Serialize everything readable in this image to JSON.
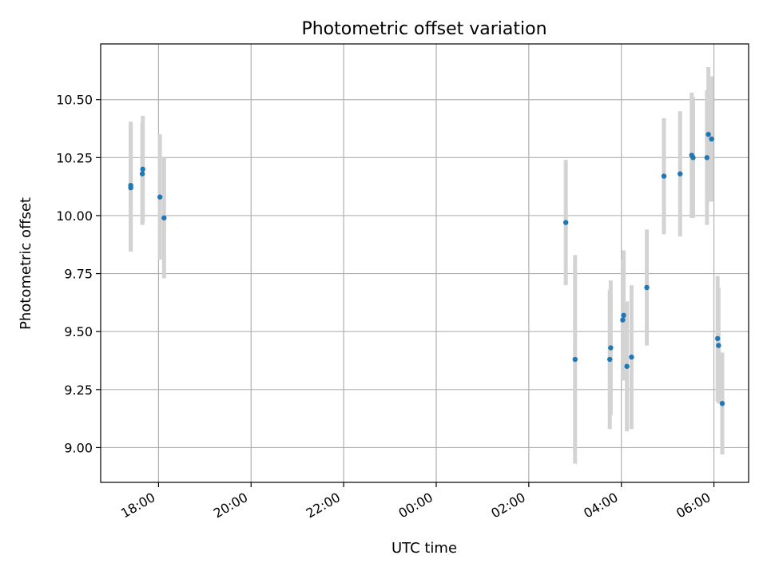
{
  "chart_data": {
    "type": "scatter",
    "title": "Photometric offset variation",
    "xlabel": "UTC time",
    "ylabel": "Photometric offset",
    "x_ticks": [
      "18:00",
      "20:00",
      "22:00",
      "00:00",
      "02:00",
      "04:00",
      "06:00"
    ],
    "y_ticks": [
      "9.00",
      "9.25",
      "9.50",
      "9.75",
      "10.00",
      "10.25",
      "10.50"
    ],
    "x_unit": "hours since 18:00 UTC",
    "xlim": [
      -1.25,
      12.75
    ],
    "ylim": [
      8.85,
      10.74
    ],
    "grid": true,
    "marker_color": "#1f77b4",
    "errorbar_color": "#d3d3d3",
    "points": [
      {
        "x": -0.6,
        "y": 10.12,
        "err": 0.275
      },
      {
        "x": -0.6,
        "y": 10.13,
        "err": 0.275
      },
      {
        "x": -0.35,
        "y": 10.18,
        "err": 0.22
      },
      {
        "x": -0.34,
        "y": 10.2,
        "err": 0.23
      },
      {
        "x": 0.03,
        "y": 10.08,
        "err": 0.27
      },
      {
        "x": 0.12,
        "y": 9.99,
        "err": 0.26
      },
      {
        "x": 8.8,
        "y": 9.97,
        "err": 0.27
      },
      {
        "x": 9.0,
        "y": 9.38,
        "err": 0.45
      },
      {
        "x": 9.75,
        "y": 9.38,
        "err": 0.3
      },
      {
        "x": 9.77,
        "y": 9.43,
        "err": 0.29
      },
      {
        "x": 10.03,
        "y": 9.55,
        "err": 0.26
      },
      {
        "x": 10.05,
        "y": 9.57,
        "err": 0.28
      },
      {
        "x": 10.12,
        "y": 9.35,
        "err": 0.28
      },
      {
        "x": 10.22,
        "y": 9.39,
        "err": 0.31
      },
      {
        "x": 10.55,
        "y": 9.69,
        "err": 0.25
      },
      {
        "x": 10.92,
        "y": 10.17,
        "err": 0.25
      },
      {
        "x": 11.27,
        "y": 10.18,
        "err": 0.27
      },
      {
        "x": 11.52,
        "y": 10.26,
        "err": 0.27
      },
      {
        "x": 11.55,
        "y": 10.25,
        "err": 0.26
      },
      {
        "x": 11.85,
        "y": 10.25,
        "err": 0.29
      },
      {
        "x": 11.88,
        "y": 10.35,
        "err": 0.29
      },
      {
        "x": 11.95,
        "y": 10.33,
        "err": 0.27
      },
      {
        "x": 12.08,
        "y": 9.47,
        "err": 0.27
      },
      {
        "x": 12.1,
        "y": 9.44,
        "err": 0.25
      },
      {
        "x": 12.18,
        "y": 9.19,
        "err": 0.22
      }
    ]
  }
}
